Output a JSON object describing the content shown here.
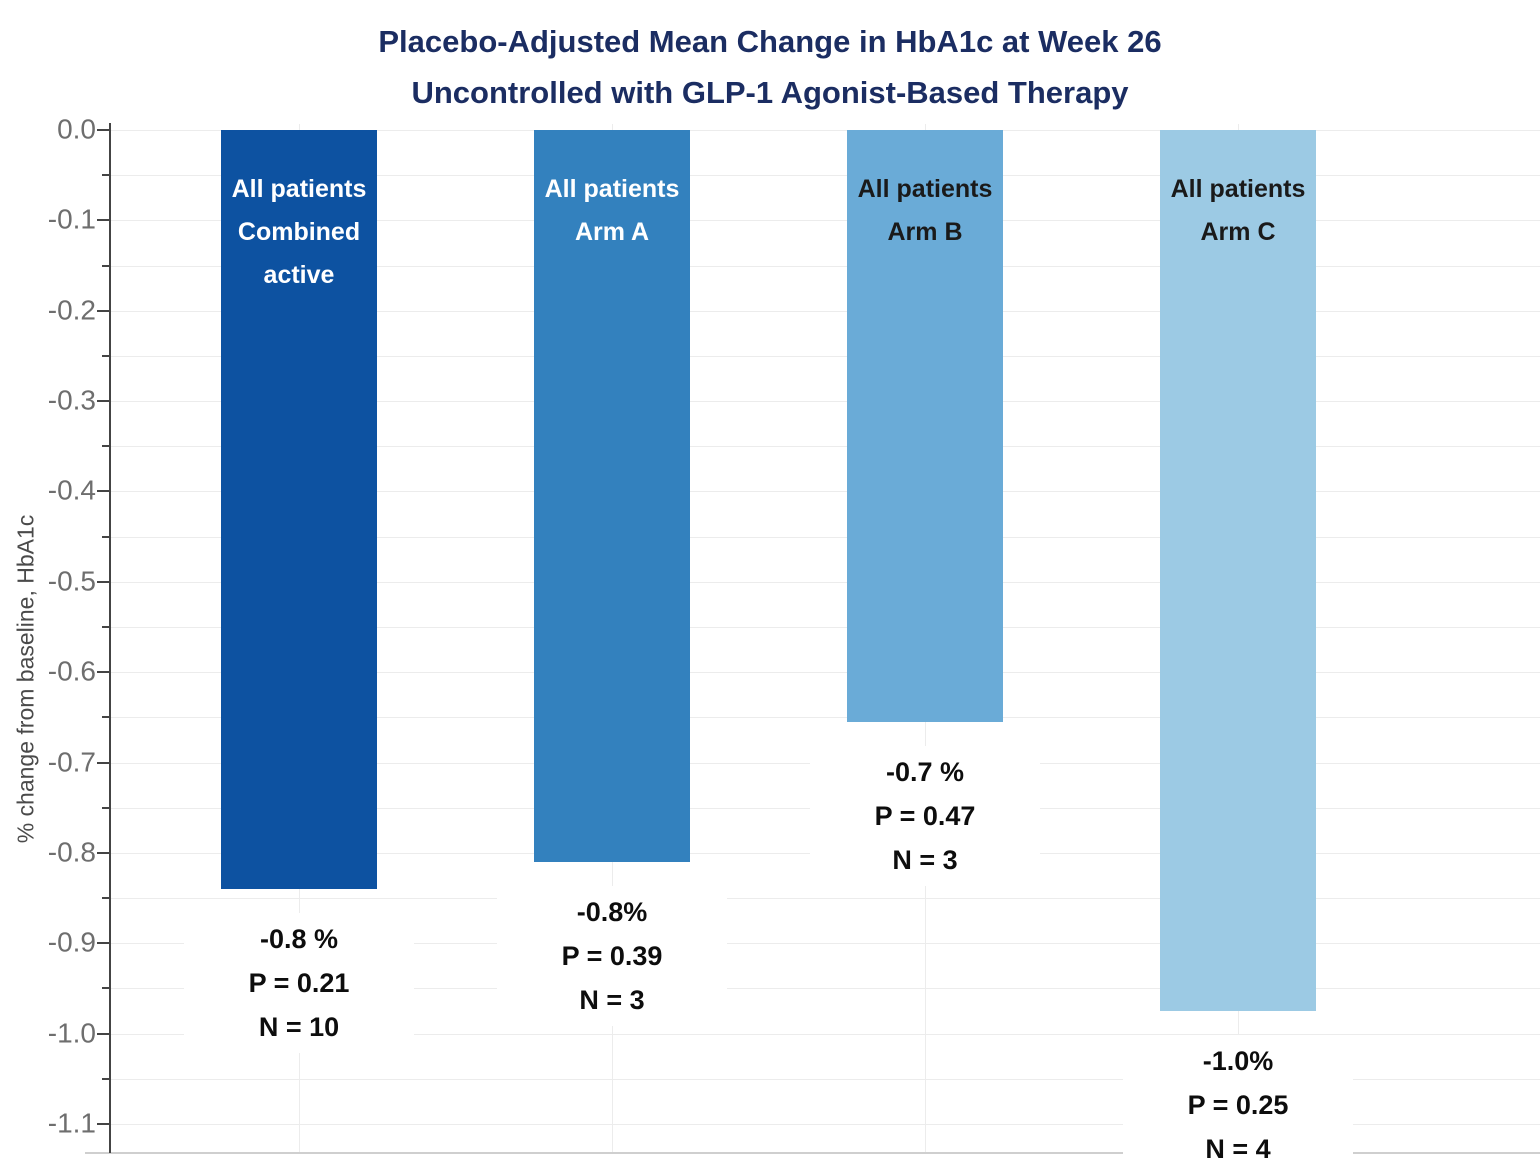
{
  "title": {
    "line1": "Placebo-Adjusted Mean Change in HbA1c at Week 26",
    "line2": "Uncontrolled with GLP-1 Agonist-Based Therapy"
  },
  "y_axis": {
    "label": "% change from baseline, HbA1c",
    "tick_labels": [
      "0.0",
      "-0.1",
      "-0.2",
      "-0.3",
      "-0.4",
      "-0.5",
      "-0.6",
      "-0.7",
      "-0.8",
      "-0.9",
      "-1.0",
      "-1.1"
    ]
  },
  "colors": {
    "title": "#1b2d62",
    "axis_line": "#444444",
    "tick_label": "#6e6e6e",
    "axis_title": "#4a4a4a",
    "gridline": "#ececec",
    "plot_border": "#cfcfcf",
    "annotation_text": "#0d0d0d",
    "bar_combined_active": "#0d52a1",
    "bar_arm_a": "#3381be",
    "bar_arm_b": "#6aabd7",
    "bar_arm_c": "#9ccae4"
  },
  "chart_data": {
    "type": "bar",
    "title": "Placebo-Adjusted Mean Change in HbA1c at Week 26 — Uncontrolled with GLP-1 Agonist-Based Therapy",
    "xlabel": "",
    "ylabel": "% change from baseline, HbA1c",
    "ylim": [
      -1.1,
      0.0
    ],
    "y_major_step": 0.1,
    "y_minor_step": 0.05,
    "grid": true,
    "legend_position": "none",
    "categories": [
      "All patients Combined active",
      "All patients Arm A",
      "All patients Arm B",
      "All patients Arm C"
    ],
    "values": [
      -0.84,
      -0.81,
      -0.655,
      -0.975
    ],
    "bars": [
      {
        "label_lines": [
          "All patients",
          "Combined",
          "active"
        ],
        "value": -0.84,
        "color": "#0d52a1",
        "label_color": "#ffffff",
        "annotation": {
          "value": "-0.8 %",
          "p": "P = 0.21",
          "n": "N = 10"
        }
      },
      {
        "label_lines": [
          "All patients",
          "Arm A"
        ],
        "value": -0.81,
        "color": "#3381be",
        "label_color": "#ffffff",
        "annotation": {
          "value": "-0.8%",
          "p": "P = 0.39",
          "n": "N = 3"
        }
      },
      {
        "label_lines": [
          "All patients",
          "Arm B"
        ],
        "value": -0.655,
        "color": "#6aabd7",
        "label_color": "#1a1a1a",
        "annotation": {
          "value": "-0.7 %",
          "p": "P = 0.47",
          "n": "N = 3"
        }
      },
      {
        "label_lines": [
          "All patients",
          "Arm C"
        ],
        "value": -0.975,
        "color": "#9ccae4",
        "label_color": "#1a1a1a",
        "annotation": {
          "value": "-1.0%",
          "p": "P = 0.25",
          "n": "N = 4"
        }
      }
    ]
  }
}
